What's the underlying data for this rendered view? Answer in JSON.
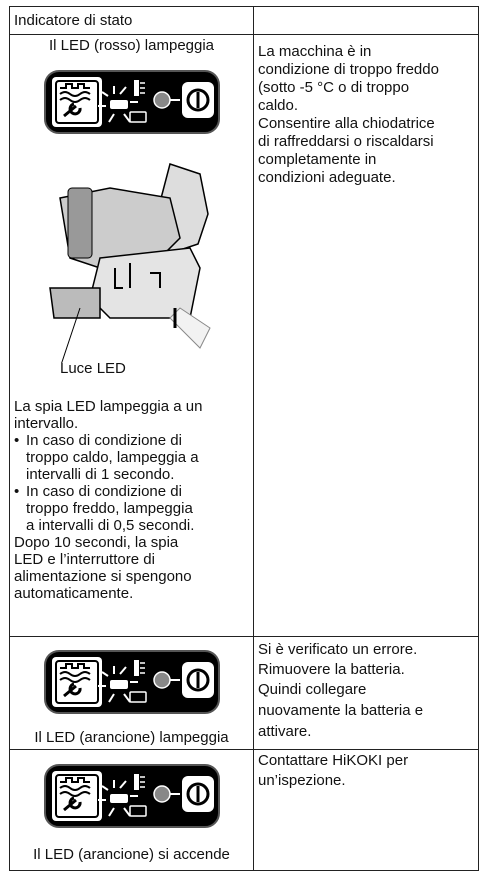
{
  "table": {
    "header": "Indicatore di stato",
    "rows": [
      {
        "caption": "Il LED (rosso) lampeggia",
        "note": "Luce LED",
        "intro": [
          "La spia LED lampeggia a un",
          "intervallo."
        ],
        "bullets": [
          [
            "In caso di condizione di",
            "troppo caldo, lampeggia a",
            "intervalli di 1 secondo."
          ],
          [
            "In caso di condizione di",
            "troppo freddo, lampeggia",
            "a intervalli di 0,5 secondi."
          ]
        ],
        "outro": [
          "Dopo 10 secondi, la spia",
          "LED e l’interruttore di",
          "alimentazione si spengono",
          "automaticamente."
        ],
        "description": [
          [
            "La macchina è in",
            "condizione di troppo freddo",
            "(sotto -5 °C o di troppo",
            "caldo."
          ],
          [
            "Consentire alla chiodatrice",
            "di raffreddarsi o riscaldarsi",
            "completamente in",
            "condizioni adeguate."
          ]
        ]
      },
      {
        "caption": "Il LED (arancione) lampeggia",
        "description": [
          [
            "Si è verificato un errore."
          ],
          [
            "Rimuovere la batteria."
          ],
          [
            "Quindi collegare",
            "nuovamente la batteria e",
            "attivare."
          ]
        ]
      },
      {
        "caption": "Il LED (arancione) si accende",
        "description": [
          [
            "Contattare HiKOKI per",
            "un’ispezione."
          ]
        ]
      }
    ]
  }
}
